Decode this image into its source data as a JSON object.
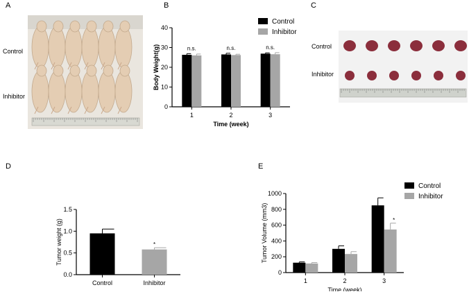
{
  "panels": {
    "A": {
      "letter": "A",
      "row_labels": [
        "Control",
        "Inhibitor"
      ]
    },
    "B": {
      "letter": "B"
    },
    "C": {
      "letter": "C",
      "row_labels": [
        "Control",
        "Inhibitor"
      ]
    },
    "D": {
      "letter": "D"
    },
    "E": {
      "letter": "E"
    }
  },
  "colors": {
    "control": "#000000",
    "inhibitor": "#a6a6a6",
    "skin": "#e4cdb3",
    "tumor": "#8b2e3c"
  },
  "chart_data": [
    {
      "id": "B",
      "type": "bar",
      "categories": [
        "1",
        "2",
        "3"
      ],
      "series": [
        {
          "name": "Control",
          "values": [
            26.3,
            26.5,
            26.9
          ],
          "errors": [
            0.6,
            0.6,
            0.4
          ]
        },
        {
          "name": "Inhibitor",
          "values": [
            26.0,
            26.2,
            26.6
          ],
          "errors": [
            0.7,
            0.4,
            0.8
          ]
        }
      ],
      "annotations": [
        "n.s.",
        "n.s.",
        "n.s."
      ],
      "xlabel": "Time (week)",
      "ylabel": "Body Weight(g)",
      "ylim": [
        0,
        40
      ],
      "yticks": [
        0,
        10,
        20,
        30,
        40
      ],
      "legend": "top-right"
    },
    {
      "id": "D",
      "type": "bar",
      "categories": [
        "Control",
        "Inhibitor"
      ],
      "series": [
        {
          "name": "",
          "values": [
            0.95,
            0.58
          ],
          "errors": [
            0.1,
            0.04
          ]
        }
      ],
      "annotations": [
        "",
        "*"
      ],
      "xlabel": "",
      "ylabel": "Tumor weight (g)",
      "ylim": [
        0,
        1.5
      ],
      "yticks": [
        "0.0",
        "0.5",
        "1.0",
        "1.5"
      ]
    },
    {
      "id": "E",
      "type": "bar",
      "categories": [
        "1",
        "2",
        "3"
      ],
      "series": [
        {
          "name": "Control",
          "values": [
            125,
            300,
            850
          ],
          "errors": [
            10,
            38,
            95
          ]
        },
        {
          "name": "Inhibitor",
          "values": [
            115,
            235,
            545
          ],
          "errors": [
            12,
            30,
            80
          ]
        }
      ],
      "annotations": [
        "",
        "",
        "*"
      ],
      "xlabel": "Time (week)",
      "ylabel": "Tumor Volume (mm3)",
      "ylim": [
        0,
        1000
      ],
      "yticks": [
        0,
        200,
        400,
        600,
        800,
        1000
      ],
      "legend": "top-right"
    }
  ]
}
